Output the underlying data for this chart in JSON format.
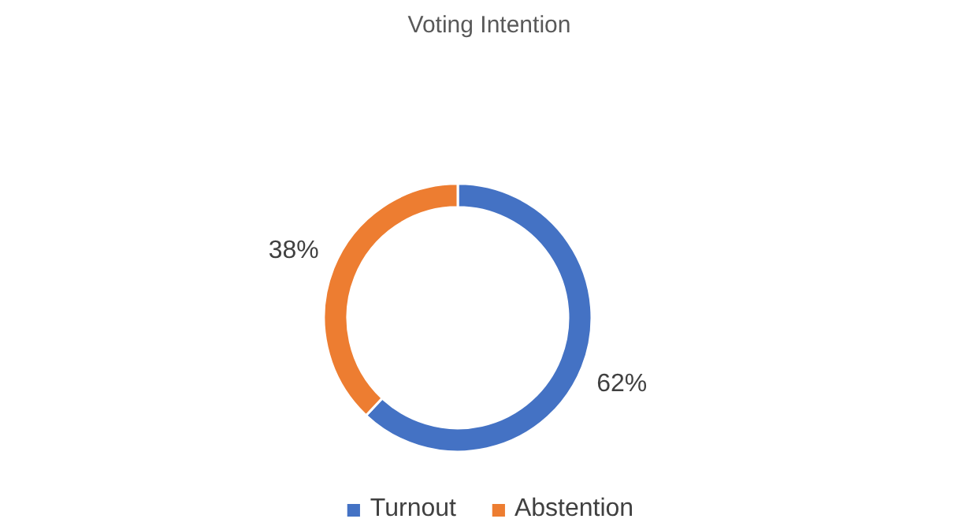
{
  "chart_data": {
    "type": "donut",
    "title": "Voting Intention",
    "categories": [
      "Turnout",
      "Abstention"
    ],
    "values": [
      62,
      38
    ],
    "colors": [
      "#4472c4",
      "#ed7d31"
    ],
    "value_labels": [
      "62%",
      "38%"
    ],
    "legend": "bottom"
  }
}
